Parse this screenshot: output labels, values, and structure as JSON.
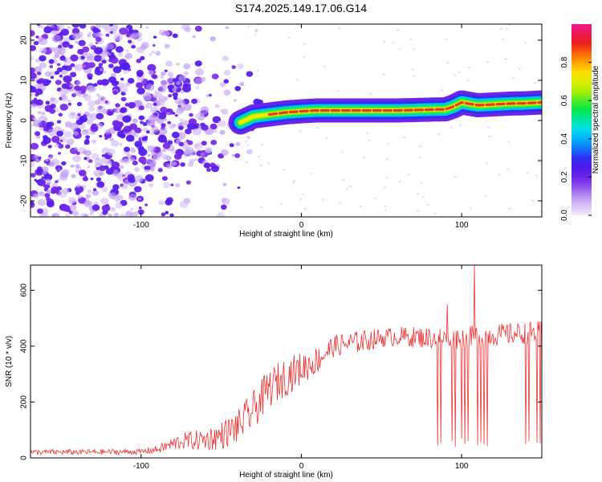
{
  "page_title": "S174.2025.149.17.06.G14",
  "colors": {
    "snr_line": "#ee3333",
    "ridge_core": "#e2372a",
    "speckle": "#7a24e6",
    "frame": "#000000"
  },
  "chart_data": [
    {
      "type": "heatmap",
      "title": "S174.2025.149.17.06.G14",
      "xlabel": "Height of straight line (km)",
      "ylabel": "Frequency (Hz)",
      "xlim": [
        -169,
        150
      ],
      "ylim": [
        -24,
        24
      ],
      "x_ticks": [
        -100,
        0,
        100
      ],
      "x_tick_labels": [
        "-100",
        "0",
        "100"
      ],
      "y_ticks": [
        -20,
        -10,
        0,
        10,
        20
      ],
      "y_tick_labels": [
        "-20",
        "-10",
        "0",
        "10",
        "20"
      ],
      "grid": false,
      "colorbar": {
        "label": "Normalized spectral amplitude",
        "range": [
          0,
          1
        ],
        "ticks": [
          0.0,
          0.2,
          0.4,
          0.6,
          0.8
        ],
        "tick_labels": [
          "0.0",
          "0.2",
          "0.4",
          "0.6",
          "0.8"
        ],
        "colormap": "rainbow (white-violet-blue-cyan-green-yellow-orange-red-magenta)"
      },
      "ridge": {
        "x": [
          -38,
          -30,
          -20,
          -10,
          0,
          10,
          20,
          40,
          60,
          80,
          90,
          95,
          100,
          110,
          120,
          130,
          140,
          150
        ],
        "y": [
          -0.5,
          1.0,
          1.5,
          2.0,
          2.3,
          2.5,
          2.5,
          2.5,
          2.5,
          2.7,
          2.8,
          3.5,
          4.5,
          3.8,
          4.0,
          4.2,
          4.3,
          4.5
        ]
      },
      "noise_region": {
        "x_range": [
          -169,
          -35
        ],
        "y_range": [
          -24,
          24
        ]
      }
    },
    {
      "type": "line",
      "xlabel": "Height of straight line (km)",
      "ylabel": "SNR (10 * v/v)",
      "xlim": [
        -169,
        150
      ],
      "ylim": [
        0,
        690
      ],
      "x_ticks": [
        -100,
        0,
        100
      ],
      "x_tick_labels": [
        "-100",
        "0",
        "100"
      ],
      "y_ticks": [
        0,
        200,
        400,
        600
      ],
      "y_tick_labels": [
        "0",
        "200",
        "400",
        "600"
      ],
      "grid": false,
      "series": [
        {
          "color": "#ee3333",
          "envelope_x": [
            -169,
            -100,
            -90,
            -75,
            -60,
            -50,
            -40,
            -30,
            -20,
            -10,
            0,
            10,
            20,
            30,
            40,
            50,
            60,
            80,
            100,
            120,
            150
          ],
          "envelope_y": [
            20,
            22,
            30,
            60,
            65,
            80,
            110,
            170,
            250,
            290,
            320,
            350,
            400,
            410,
            420,
            430,
            435,
            430,
            430,
            440,
            450
          ],
          "noise_amplitude": [
            10,
            10,
            15,
            30,
            40,
            50,
            60,
            70,
            70,
            70,
            60,
            50,
            40,
            40,
            40,
            35,
            35,
            40,
            40,
            40,
            40
          ],
          "dropouts": [
            {
              "x": 85,
              "y": 45
            },
            {
              "x": 87,
              "y": 55
            },
            {
              "x": 94,
              "y": 60
            },
            {
              "x": 96,
              "y": 40
            },
            {
              "x": 100,
              "y": 70
            },
            {
              "x": 102,
              "y": 50
            },
            {
              "x": 104,
              "y": 60
            },
            {
              "x": 110,
              "y": 45
            },
            {
              "x": 112,
              "y": 55
            },
            {
              "x": 114,
              "y": 48
            },
            {
              "x": 116,
              "y": 42
            },
            {
              "x": 140,
              "y": 50
            },
            {
              "x": 142,
              "y": 60
            },
            {
              "x": 147,
              "y": 55
            },
            {
              "x": 149,
              "y": 52
            }
          ],
          "spikes": [
            {
              "x": 91,
              "y": 550
            },
            {
              "x": 108,
              "y": 690
            }
          ]
        }
      ]
    }
  ]
}
